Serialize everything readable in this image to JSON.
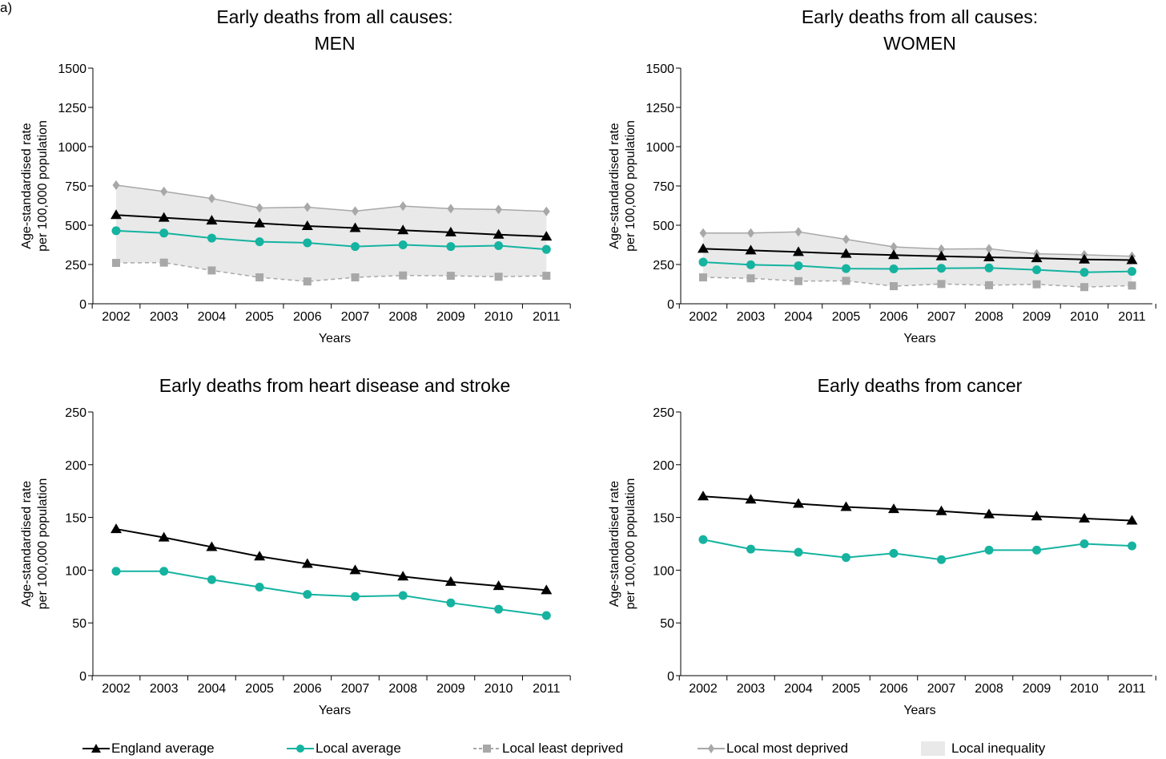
{
  "page_label": "a)",
  "colors": {
    "england": "#000000",
    "local": "#15b3a0",
    "least": "#a8a8a8",
    "most": "#a8a8a8",
    "band": "#e9e9e9"
  },
  "legend": {
    "england": "England average",
    "local": "Local average",
    "least": "Local least deprived",
    "most": "Local most deprived",
    "band": "Local inequality"
  },
  "chart_data": [
    {
      "type": "line",
      "title": "Early deaths from all causes:",
      "subtitle": "MEN",
      "xlabel": "Years",
      "ylabel": [
        "Age-standardised rate",
        "per 100,000 population"
      ],
      "categories": [
        "2002",
        "2003",
        "2004",
        "2005",
        "2006",
        "2007",
        "2008",
        "2009",
        "2010",
        "2011"
      ],
      "ylim": [
        0,
        1500
      ],
      "yticks": [
        "0",
        "250",
        "500",
        "750",
        "1000",
        "1250",
        "1500"
      ],
      "shaded_band": true,
      "series": [
        {
          "key": "most",
          "name": "Local most deprived",
          "values": [
            755,
            715,
            670,
            610,
            615,
            590,
            622,
            605,
            600,
            588
          ]
        },
        {
          "key": "least",
          "name": "Local least deprived",
          "values": [
            260,
            262,
            212,
            168,
            142,
            168,
            180,
            178,
            172,
            178
          ]
        },
        {
          "key": "england",
          "name": "England average",
          "values": [
            565,
            548,
            530,
            512,
            495,
            482,
            468,
            455,
            440,
            428
          ]
        },
        {
          "key": "local",
          "name": "Local average",
          "values": [
            465,
            450,
            418,
            395,
            388,
            364,
            375,
            364,
            370,
            346
          ]
        }
      ]
    },
    {
      "type": "line",
      "title": "Early deaths from all causes:",
      "subtitle": "WOMEN",
      "xlabel": "Years",
      "ylabel": [
        "Age-standardised rate",
        "per 100,000 population"
      ],
      "categories": [
        "2002",
        "2003",
        "2004",
        "2005",
        "2006",
        "2007",
        "2008",
        "2009",
        "2010",
        "2011"
      ],
      "ylim": [
        0,
        1500
      ],
      "yticks": [
        "0",
        "250",
        "500",
        "750",
        "1000",
        "1250",
        "1500"
      ],
      "shaded_band": true,
      "series": [
        {
          "key": "most",
          "name": "Local most deprived",
          "values": [
            450,
            450,
            458,
            410,
            362,
            348,
            350,
            318,
            312,
            302
          ]
        },
        {
          "key": "least",
          "name": "Local least deprived",
          "values": [
            168,
            162,
            144,
            146,
            112,
            126,
            118,
            124,
            106,
            116
          ]
        },
        {
          "key": "england",
          "name": "England average",
          "values": [
            350,
            340,
            330,
            318,
            310,
            302,
            296,
            290,
            282,
            278
          ]
        },
        {
          "key": "local",
          "name": "Local average",
          "values": [
            265,
            248,
            242,
            224,
            222,
            226,
            228,
            216,
            200,
            206
          ]
        }
      ]
    },
    {
      "type": "line",
      "title": "Early deaths from heart disease and stroke",
      "subtitle": "",
      "xlabel": "Years",
      "ylabel": [
        "Age-standardised rate",
        "per 100,000 population"
      ],
      "categories": [
        "2002",
        "2003",
        "2004",
        "2005",
        "2006",
        "2007",
        "2008",
        "2009",
        "2010",
        "2011"
      ],
      "ylim": [
        0,
        250
      ],
      "yticks": [
        "0",
        "50",
        "100",
        "150",
        "200",
        "250"
      ],
      "shaded_band": false,
      "series": [
        {
          "key": "england",
          "name": "England average",
          "values": [
            139,
            131,
            122,
            113,
            106,
            100,
            94,
            89,
            85,
            81
          ]
        },
        {
          "key": "local",
          "name": "Local average",
          "values": [
            99,
            99,
            91,
            84,
            77,
            75,
            76,
            69,
            63,
            57
          ]
        }
      ]
    },
    {
      "type": "line",
      "title": "Early deaths from cancer",
      "subtitle": "",
      "xlabel": "Years",
      "ylabel": [
        "Age-standardised rate",
        "per 100,000 population"
      ],
      "categories": [
        "2002",
        "2003",
        "2004",
        "2005",
        "2006",
        "2007",
        "2008",
        "2009",
        "2010",
        "2011"
      ],
      "ylim": [
        0,
        250
      ],
      "yticks": [
        "0",
        "50",
        "100",
        "150",
        "200",
        "250"
      ],
      "shaded_band": false,
      "series": [
        {
          "key": "england",
          "name": "England average",
          "values": [
            170,
            167,
            163,
            160,
            158,
            156,
            153,
            151,
            149,
            147
          ]
        },
        {
          "key": "local",
          "name": "Local average",
          "values": [
            129,
            120,
            117,
            112,
            116,
            110,
            119,
            119,
            125,
            123
          ]
        }
      ]
    }
  ]
}
